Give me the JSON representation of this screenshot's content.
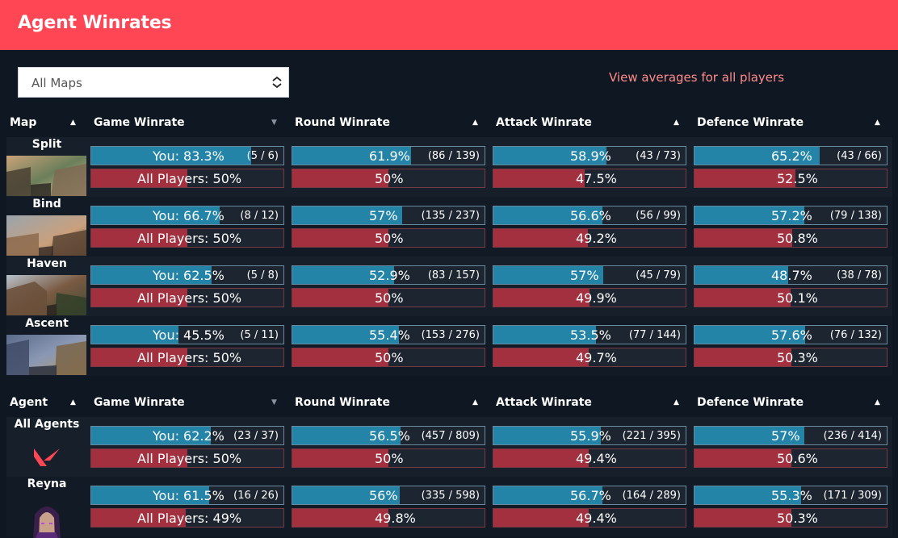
{
  "header": {
    "title": "Agent Winrates"
  },
  "filter": {
    "selected": "All Maps"
  },
  "link_text": "View averages for all players",
  "map_table": {
    "headers": [
      "Map",
      "Game Winrate",
      "Round Winrate",
      "Attack Winrate",
      "Defence Winrate"
    ],
    "rows": [
      {
        "name": "Split",
        "game": {
          "you": "You: 83.3%",
          "you_pct": 83.3,
          "count": "(5 / 6)",
          "all": "All Players: 50%",
          "all_pct": 50
        },
        "round": {
          "you": "61.9%",
          "you_pct": 61.9,
          "count": "(86 / 139)",
          "all": "50%",
          "all_pct": 50
        },
        "attack": {
          "you": "58.9%",
          "you_pct": 58.9,
          "count": "(43 / 73)",
          "all": "47.5%",
          "all_pct": 47.5
        },
        "defence": {
          "you": "65.2%",
          "you_pct": 65.2,
          "count": "(43 / 66)",
          "all": "52.5%",
          "all_pct": 52.5
        }
      },
      {
        "name": "Bind",
        "game": {
          "you": "You: 66.7%",
          "you_pct": 66.7,
          "count": "(8 / 12)",
          "all": "All Players: 50%",
          "all_pct": 50
        },
        "round": {
          "you": "57%",
          "you_pct": 57,
          "count": "(135 / 237)",
          "all": "50%",
          "all_pct": 50
        },
        "attack": {
          "you": "56.6%",
          "you_pct": 56.6,
          "count": "(56 / 99)",
          "all": "49.2%",
          "all_pct": 49.2
        },
        "defence": {
          "you": "57.2%",
          "you_pct": 57.2,
          "count": "(79 / 138)",
          "all": "50.8%",
          "all_pct": 50.8
        }
      },
      {
        "name": "Haven",
        "game": {
          "you": "You: 62.5%",
          "you_pct": 62.5,
          "count": "(5 / 8)",
          "all": "All Players: 50%",
          "all_pct": 50
        },
        "round": {
          "you": "52.9%",
          "you_pct": 52.9,
          "count": "(83 / 157)",
          "all": "50%",
          "all_pct": 50
        },
        "attack": {
          "you": "57%",
          "you_pct": 57,
          "count": "(45 / 79)",
          "all": "49.9%",
          "all_pct": 49.9
        },
        "defence": {
          "you": "48.7%",
          "you_pct": 48.7,
          "count": "(38 / 78)",
          "all": "50.1%",
          "all_pct": 50.1
        }
      },
      {
        "name": "Ascent",
        "game": {
          "you": "You: 45.5%",
          "you_pct": 45.5,
          "count": "(5 / 11)",
          "all": "All Players: 50%",
          "all_pct": 50
        },
        "round": {
          "you": "55.4%",
          "you_pct": 55.4,
          "count": "(153 / 276)",
          "all": "50%",
          "all_pct": 50
        },
        "attack": {
          "you": "53.5%",
          "you_pct": 53.5,
          "count": "(77 / 144)",
          "all": "49.7%",
          "all_pct": 49.7
        },
        "defence": {
          "you": "57.6%",
          "you_pct": 57.6,
          "count": "(76 / 132)",
          "all": "50.3%",
          "all_pct": 50.3
        }
      }
    ]
  },
  "agent_table": {
    "headers": [
      "Agent",
      "Game Winrate",
      "Round Winrate",
      "Attack Winrate",
      "Defence Winrate"
    ],
    "rows": [
      {
        "name": "All Agents",
        "game": {
          "you": "You: 62.2%",
          "you_pct": 62.2,
          "count": "(23 / 37)",
          "all": "All Players: 50%",
          "all_pct": 50
        },
        "round": {
          "you": "56.5%",
          "you_pct": 56.5,
          "count": "(457 / 809)",
          "all": "50%",
          "all_pct": 50
        },
        "attack": {
          "you": "55.9%",
          "you_pct": 55.9,
          "count": "(221 / 395)",
          "all": "49.4%",
          "all_pct": 49.4
        },
        "defence": {
          "you": "57%",
          "you_pct": 57,
          "count": "(236 / 414)",
          "all": "50.6%",
          "all_pct": 50.6
        }
      },
      {
        "name": "Reyna",
        "game": {
          "you": "You: 61.5%",
          "you_pct": 61.5,
          "count": "(16 / 26)",
          "all": "All Players: 49%",
          "all_pct": 49
        },
        "round": {
          "you": "56%",
          "you_pct": 56,
          "count": "(335 / 598)",
          "all": "49.8%",
          "all_pct": 49.8
        },
        "attack": {
          "you": "56.7%",
          "you_pct": 56.7,
          "count": "(164 / 289)",
          "all": "49.4%",
          "all_pct": 49.4
        },
        "defence": {
          "you": "55.3%",
          "you_pct": 55.3,
          "count": "(171 / 309)",
          "all": "50.3%",
          "all_pct": 50.3
        }
      }
    ]
  },
  "colors": {
    "accent": "#ff4655",
    "you_fill": "#2384a8",
    "all_fill": "#a2303f",
    "background": "#0f1822",
    "link": "#ff8b8b"
  }
}
